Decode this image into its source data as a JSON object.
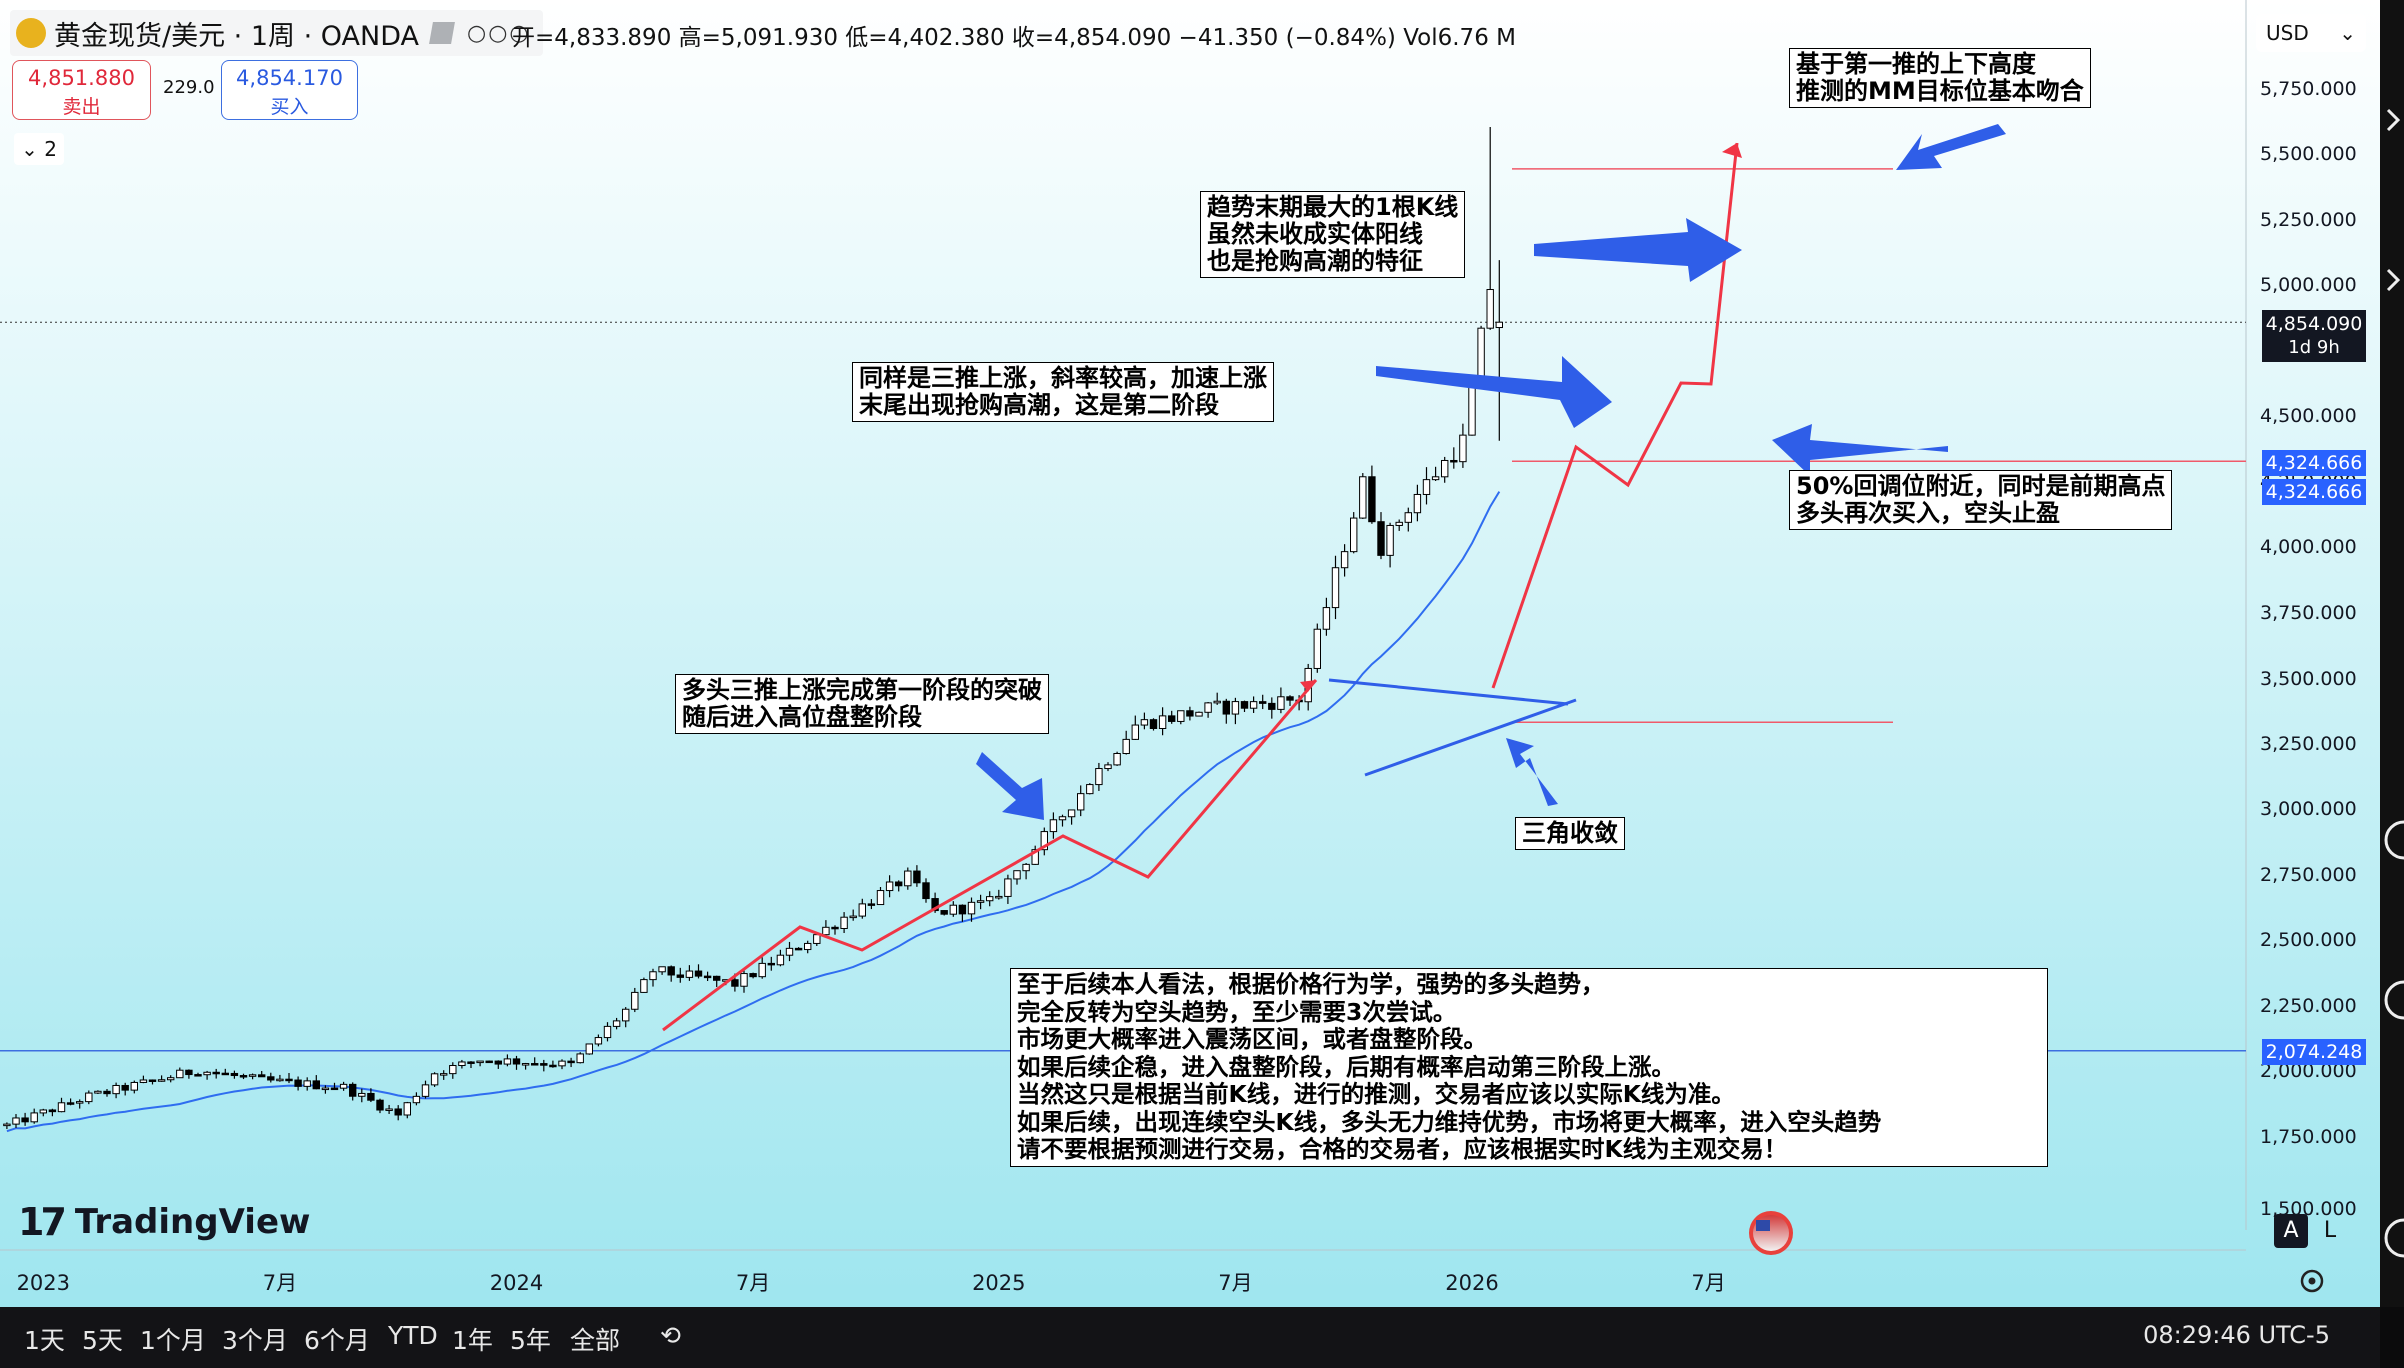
{
  "symbol": {
    "name": "黄金现货/美元 · 1周 · OANDA",
    "dots": "○○○"
  },
  "ohlc": "开=4,833.890 高=5,091.930 低=4,402.380 收=4,854.090 −41.350 (−0.84%) Vol6.76 M",
  "sell": {
    "price": "4,851.880",
    "label": "卖出"
  },
  "buy": {
    "price": "4,854.170",
    "label": "买入"
  },
  "spread": "229.0",
  "indicator_toggle": "2",
  "currency": "USD",
  "price_labels": {
    "current": "4,854.090",
    "countdown": "1d 9h",
    "level1": "4,324.666",
    "level2": "4,324.666",
    "ma": "2,074.248"
  },
  "annotations": {
    "mm_target": [
      "基于第一推的上下高度",
      "推测的MM目标位基本吻合"
    ],
    "last_candle": [
      "趋势末期最大的1根K线",
      "虽然未收成实体阳线",
      "也是抢购高潮的特征"
    ],
    "second_stage": [
      "同样是三推上涨，斜率较高，加速上涨",
      "末尾出现抢购高潮，这是第二阶段"
    ],
    "fifty_pct": [
      "50%回调位附近，同时是前期高点",
      "多头再次买入，空头止盈"
    ],
    "first_stage": [
      "多头三推上涨完成第一阶段的突破",
      "随后进入高位盘整阶段"
    ],
    "triangle": [
      "三角收敛"
    ],
    "outlook": [
      "至于后续本人看法，根据价格行为学，强势的多头趋势，",
      "完全反转为空头趋势，至少需要3次尝试。",
      "市场更大概率进入震荡区间，或者盘整阶段。",
      "如果后续企稳，进入盘整阶段，后期有概率启动第三阶段上涨。",
      "当然这只是根据当前K线，进行的推测，交易者应该以实际K线为准。",
      "如果后续，出现连续空头K线，多头无力维持优势，市场将更大概率，进入空头趋势",
      "请不要根据预测进行交易，合格的交易者，应该根据实时K线为主观交易！"
    ]
  },
  "tv_logo": {
    "mark": "17",
    "text": "TradingView"
  },
  "scale_buttons": {
    "a": "A",
    "l": "L"
  },
  "bottom": {
    "ranges": [
      "1天",
      "5天",
      "1个月",
      "3个月",
      "6个月",
      "YTD",
      "1年",
      "5年",
      "全部"
    ],
    "clock": "08:29:46 UTC-5"
  },
  "chart_data": {
    "type": "candlestick",
    "yticks": [
      1500,
      1750,
      2000,
      2250,
      2500,
      2750,
      3000,
      3250,
      3500,
      3750,
      4000,
      4250,
      4500,
      5000,
      5250,
      5500,
      5750
    ],
    "ytick_labels": [
      "1,500.000",
      "1,750.000",
      "2,000.000",
      "2,250.000",
      "2,500.000",
      "2,750.000",
      "3,000.000",
      "3,250.000",
      "3,500.000",
      "3,750.000",
      "4,000.000",
      "4,250.000",
      "4,500.000",
      "5,000.000",
      "5,250.000",
      "5,500.000",
      "5,750.000"
    ],
    "xticks": [
      "2023",
      "7月",
      "2024",
      "7月",
      "2025",
      "7月",
      "2026",
      "7月"
    ],
    "ohlc_last": {
      "open": 4833.89,
      "high": 5091.93,
      "low": 4402.38,
      "close": 4854.09
    },
    "horizontal_levels": [
      5440,
      4324.666,
      3330,
      2074.248
    ],
    "anchors": [
      {
        "date": "2022-12-05",
        "price": 1790
      },
      {
        "date": "2023-02-06",
        "price": 1900
      },
      {
        "date": "2023-05-01",
        "price": 2000
      },
      {
        "date": "2023-06-19",
        "price": 1960
      },
      {
        "date": "2023-08-21",
        "price": 1935
      },
      {
        "date": "2023-10-02",
        "price": 1830
      },
      {
        "date": "2023-10-30",
        "price": 1990
      },
      {
        "date": "2023-12-04",
        "price": 2040
      },
      {
        "date": "2024-01-15",
        "price": 2030
      },
      {
        "date": "2024-02-12",
        "price": 2020
      },
      {
        "date": "2024-03-25",
        "price": 2230
      },
      {
        "date": "2024-04-15",
        "price": 2380
      },
      {
        "date": "2024-06-17",
        "price": 2330
      },
      {
        "date": "2024-07-29",
        "price": 2450
      },
      {
        "date": "2024-10-28",
        "price": 2740
      },
      {
        "date": "2024-11-18",
        "price": 2600
      },
      {
        "date": "2024-12-30",
        "price": 2640
      },
      {
        "date": "2025-02-17",
        "price": 2930
      },
      {
        "date": "2025-04-21",
        "price": 3320
      },
      {
        "date": "2025-06-16",
        "price": 3380
      },
      {
        "date": "2025-08-25",
        "price": 3420
      },
      {
        "date": "2025-10-13",
        "price": 4240
      },
      {
        "date": "2025-10-27",
        "price": 4000
      },
      {
        "date": "2025-11-24",
        "price": 4200
      },
      {
        "date": "2025-12-29",
        "price": 4400
      },
      {
        "date": "2026-01-19",
        "price": 4990
      },
      {
        "date": "2026-01-26",
        "price": 4854
      }
    ]
  }
}
